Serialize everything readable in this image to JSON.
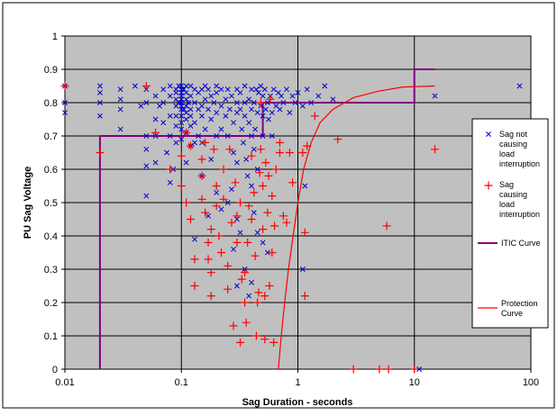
{
  "chart_data": {
    "type": "scatter",
    "xlabel": "Sag Duration - seconds",
    "ylabel": "PU Sag Voltage",
    "x_scale": "log",
    "xlim": [
      0.01,
      100
    ],
    "ylim": [
      0,
      1
    ],
    "x_ticks": [
      "0.01",
      "0.1",
      "1",
      "10",
      "100"
    ],
    "y_ticks": [
      "0",
      "0.1",
      "0.2",
      "0.3",
      "0.4",
      "0.5",
      "0.6",
      "0.7",
      "0.8",
      "0.9",
      "1"
    ],
    "grid": true,
    "legend_position": "right",
    "colors": {
      "plot_bg": "#c0c0c0",
      "not_causing": "#0000cc",
      "causing": "#ff0000",
      "itic": "#800080",
      "protection": "#ff0000"
    },
    "series": [
      {
        "name": "Sag not causing load interruption",
        "legend_lines": [
          "Sag not",
          "causing",
          "load",
          "interruption"
        ],
        "marker": "x",
        "points": [
          [
            0.01,
            0.85
          ],
          [
            0.01,
            0.8
          ],
          [
            0.01,
            0.77
          ],
          [
            0.02,
            0.85
          ],
          [
            0.02,
            0.83
          ],
          [
            0.02,
            0.8
          ],
          [
            0.02,
            0.76
          ],
          [
            0.03,
            0.84
          ],
          [
            0.03,
            0.81
          ],
          [
            0.03,
            0.78
          ],
          [
            0.03,
            0.72
          ],
          [
            0.04,
            0.85
          ],
          [
            0.045,
            0.79
          ],
          [
            0.05,
            0.84
          ],
          [
            0.05,
            0.8
          ],
          [
            0.05,
            0.7
          ],
          [
            0.05,
            0.66
          ],
          [
            0.05,
            0.61
          ],
          [
            0.05,
            0.52
          ],
          [
            0.06,
            0.82
          ],
          [
            0.06,
            0.75
          ],
          [
            0.06,
            0.7
          ],
          [
            0.06,
            0.62
          ],
          [
            0.065,
            0.79
          ],
          [
            0.07,
            0.84
          ],
          [
            0.07,
            0.8
          ],
          [
            0.07,
            0.74
          ],
          [
            0.075,
            0.65
          ],
          [
            0.08,
            0.85
          ],
          [
            0.08,
            0.82
          ],
          [
            0.08,
            0.76
          ],
          [
            0.08,
            0.7
          ],
          [
            0.08,
            0.56
          ],
          [
            0.085,
            0.6
          ],
          [
            0.09,
            0.84
          ],
          [
            0.09,
            0.83
          ],
          [
            0.09,
            0.81
          ],
          [
            0.09,
            0.79
          ],
          [
            0.09,
            0.76
          ],
          [
            0.09,
            0.73
          ],
          [
            0.09,
            0.68
          ],
          [
            0.095,
            0.85
          ],
          [
            0.095,
            0.8
          ],
          [
            0.1,
            0.85
          ],
          [
            0.1,
            0.84
          ],
          [
            0.1,
            0.83
          ],
          [
            0.1,
            0.82
          ],
          [
            0.1,
            0.81
          ],
          [
            0.1,
            0.8
          ],
          [
            0.1,
            0.79
          ],
          [
            0.1,
            0.78
          ],
          [
            0.1,
            0.76
          ],
          [
            0.1,
            0.74
          ],
          [
            0.1,
            0.72
          ],
          [
            0.1,
            0.69
          ],
          [
            0.105,
            0.84
          ],
          [
            0.105,
            0.78
          ],
          [
            0.11,
            0.85
          ],
          [
            0.11,
            0.83
          ],
          [
            0.11,
            0.81
          ],
          [
            0.11,
            0.79
          ],
          [
            0.11,
            0.77
          ],
          [
            0.11,
            0.75
          ],
          [
            0.11,
            0.71
          ],
          [
            0.11,
            0.62
          ],
          [
            0.115,
            0.8
          ],
          [
            0.12,
            0.85
          ],
          [
            0.12,
            0.82
          ],
          [
            0.12,
            0.78
          ],
          [
            0.12,
            0.76
          ],
          [
            0.12,
            0.73
          ],
          [
            0.12,
            0.67
          ],
          [
            0.13,
            0.84
          ],
          [
            0.13,
            0.8
          ],
          [
            0.13,
            0.74
          ],
          [
            0.13,
            0.39
          ],
          [
            0.14,
            0.83
          ],
          [
            0.14,
            0.78
          ],
          [
            0.14,
            0.7
          ],
          [
            0.15,
            0.84
          ],
          [
            0.15,
            0.79
          ],
          [
            0.15,
            0.76
          ],
          [
            0.15,
            0.68
          ],
          [
            0.16,
            0.85
          ],
          [
            0.16,
            0.81
          ],
          [
            0.16,
            0.72
          ],
          [
            0.17,
            0.84
          ],
          [
            0.17,
            0.78
          ],
          [
            0.18,
            0.82
          ],
          [
            0.18,
            0.75
          ],
          [
            0.19,
            0.8
          ],
          [
            0.2,
            0.85
          ],
          [
            0.2,
            0.83
          ],
          [
            0.2,
            0.77
          ],
          [
            0.2,
            0.7
          ],
          [
            0.22,
            0.84
          ],
          [
            0.22,
            0.79
          ],
          [
            0.22,
            0.72
          ],
          [
            0.24,
            0.81
          ],
          [
            0.24,
            0.76
          ],
          [
            0.25,
            0.84
          ],
          [
            0.25,
            0.7
          ],
          [
            0.26,
            0.78
          ],
          [
            0.27,
            0.82
          ],
          [
            0.28,
            0.74
          ],
          [
            0.28,
            0.65
          ],
          [
            0.3,
            0.84
          ],
          [
            0.3,
            0.8
          ],
          [
            0.3,
            0.77
          ],
          [
            0.3,
            0.62
          ],
          [
            0.32,
            0.83
          ],
          [
            0.32,
            0.78
          ],
          [
            0.33,
            0.72
          ],
          [
            0.34,
            0.68
          ],
          [
            0.35,
            0.85
          ],
          [
            0.35,
            0.8
          ],
          [
            0.35,
            0.76
          ],
          [
            0.36,
            0.63
          ],
          [
            0.37,
            0.58
          ],
          [
            0.38,
            0.81
          ],
          [
            0.38,
            0.74
          ],
          [
            0.4,
            0.84
          ],
          [
            0.4,
            0.78
          ],
          [
            0.4,
            0.7
          ],
          [
            0.4,
            0.55
          ],
          [
            0.42,
            0.8
          ],
          [
            0.42,
            0.66
          ],
          [
            0.43,
            0.72
          ],
          [
            0.44,
            0.84
          ],
          [
            0.45,
            0.77
          ],
          [
            0.45,
            0.6
          ],
          [
            0.46,
            0.83
          ],
          [
            0.48,
            0.85
          ],
          [
            0.48,
            0.79
          ],
          [
            0.5,
            0.76
          ],
          [
            0.5,
            0.82
          ],
          [
            0.5,
            0.7
          ],
          [
            0.52,
            0.84
          ],
          [
            0.53,
            0.78
          ],
          [
            0.55,
            0.8
          ],
          [
            0.56,
            0.75
          ],
          [
            0.58,
            0.82
          ],
          [
            0.6,
            0.77
          ],
          [
            0.6,
            0.7
          ],
          [
            0.62,
            0.84
          ],
          [
            0.65,
            0.79
          ],
          [
            0.68,
            0.83
          ],
          [
            0.7,
            0.78
          ],
          [
            0.72,
            0.82
          ],
          [
            0.75,
            0.8
          ],
          [
            0.8,
            0.84
          ],
          [
            0.85,
            0.77
          ],
          [
            0.9,
            0.82
          ],
          [
            0.95,
            0.8
          ],
          [
            1.0,
            0.83
          ],
          [
            1.1,
            0.79
          ],
          [
            1.2,
            0.84
          ],
          [
            1.3,
            0.8
          ],
          [
            1.5,
            0.82
          ],
          [
            1.7,
            0.85
          ],
          [
            2.0,
            0.81
          ],
          [
            1.15,
            0.55
          ],
          [
            1.1,
            0.3
          ],
          [
            0.25,
            0.5
          ],
          [
            0.3,
            0.45
          ],
          [
            0.28,
            0.36
          ],
          [
            0.3,
            0.25
          ],
          [
            0.35,
            0.3
          ],
          [
            0.4,
            0.26
          ],
          [
            0.38,
            0.22
          ],
          [
            0.45,
            0.41
          ],
          [
            0.5,
            0.38
          ],
          [
            0.55,
            0.35
          ],
          [
            0.42,
            0.47
          ],
          [
            0.18,
            0.63
          ],
          [
            0.2,
            0.53
          ],
          [
            0.22,
            0.48
          ],
          [
            0.15,
            0.58
          ],
          [
            0.17,
            0.46
          ],
          [
            0.13,
            0.68
          ],
          [
            0.27,
            0.54
          ],
          [
            0.32,
            0.41
          ],
          [
            15.0,
            0.82
          ],
          [
            80.0,
            0.85
          ],
          [
            11.0,
            0.0
          ]
        ]
      },
      {
        "name": "Sag causing load interruption",
        "legend_lines": [
          "Sag",
          "causing",
          "load",
          "interruption"
        ],
        "marker": "+",
        "points": [
          [
            0.01,
            0.85
          ],
          [
            0.02,
            0.65
          ],
          [
            0.05,
            0.85
          ],
          [
            0.06,
            0.71
          ],
          [
            0.08,
            0.6
          ],
          [
            0.1,
            0.55
          ],
          [
            0.1,
            0.64
          ],
          [
            0.11,
            0.71
          ],
          [
            0.11,
            0.5
          ],
          [
            0.12,
            0.45
          ],
          [
            0.12,
            0.67
          ],
          [
            0.13,
            0.33
          ],
          [
            0.13,
            0.25
          ],
          [
            0.15,
            0.63
          ],
          [
            0.15,
            0.58
          ],
          [
            0.15,
            0.51
          ],
          [
            0.16,
            0.68
          ],
          [
            0.16,
            0.47
          ],
          [
            0.17,
            0.38
          ],
          [
            0.17,
            0.33
          ],
          [
            0.18,
            0.42
          ],
          [
            0.18,
            0.29
          ],
          [
            0.18,
            0.22
          ],
          [
            0.19,
            0.66
          ],
          [
            0.2,
            0.55
          ],
          [
            0.2,
            0.49
          ],
          [
            0.21,
            0.4
          ],
          [
            0.22,
            0.35
          ],
          [
            0.23,
            0.6
          ],
          [
            0.23,
            0.51
          ],
          [
            0.25,
            0.31
          ],
          [
            0.25,
            0.24
          ],
          [
            0.26,
            0.66
          ],
          [
            0.27,
            0.44
          ],
          [
            0.28,
            0.13
          ],
          [
            0.29,
            0.56
          ],
          [
            0.3,
            0.46
          ],
          [
            0.3,
            0.38
          ],
          [
            0.32,
            0.5
          ],
          [
            0.32,
            0.08
          ],
          [
            0.33,
            0.27
          ],
          [
            0.35,
            0.29
          ],
          [
            0.35,
            0.2
          ],
          [
            0.36,
            0.14
          ],
          [
            0.37,
            0.38
          ],
          [
            0.38,
            0.49
          ],
          [
            0.4,
            0.64
          ],
          [
            0.4,
            0.45
          ],
          [
            0.42,
            0.53
          ],
          [
            0.43,
            0.34
          ],
          [
            0.44,
            0.1
          ],
          [
            0.45,
            0.2
          ],
          [
            0.46,
            0.23
          ],
          [
            0.47,
            0.59
          ],
          [
            0.48,
            0.8
          ],
          [
            0.48,
            0.66
          ],
          [
            0.5,
            0.55
          ],
          [
            0.5,
            0.42
          ],
          [
            0.52,
            0.22
          ],
          [
            0.52,
            0.09
          ],
          [
            0.53,
            0.62
          ],
          [
            0.55,
            0.47
          ],
          [
            0.56,
            0.58
          ],
          [
            0.57,
            0.25
          ],
          [
            0.58,
            0.81
          ],
          [
            0.6,
            0.52
          ],
          [
            0.6,
            0.35
          ],
          [
            0.62,
            0.08
          ],
          [
            0.63,
            0.43
          ],
          [
            0.65,
            0.6
          ],
          [
            0.7,
            0.68
          ],
          [
            0.7,
            0.65
          ],
          [
            0.75,
            0.46
          ],
          [
            0.8,
            0.44
          ],
          [
            0.85,
            0.65
          ],
          [
            0.9,
            0.56
          ],
          [
            1.1,
            0.65
          ],
          [
            1.15,
            0.41
          ],
          [
            1.15,
            0.22
          ],
          [
            1.2,
            0.67
          ],
          [
            1.4,
            0.76
          ],
          [
            2.2,
            0.69
          ],
          [
            3.0,
            0.0
          ],
          [
            5.0,
            0.0
          ],
          [
            5.8,
            0.43
          ],
          [
            6.0,
            0.0
          ],
          [
            10.0,
            0.0
          ],
          [
            15.0,
            0.66
          ]
        ]
      },
      {
        "name": "ITIC Curve",
        "legend_lines": [
          "ITIC Curve"
        ],
        "marker": "line",
        "points": [
          [
            0.02,
            0.0
          ],
          [
            0.02,
            0.7
          ],
          [
            0.5,
            0.7
          ],
          [
            0.5,
            0.8
          ],
          [
            10,
            0.8
          ],
          [
            10,
            0.9
          ],
          [
            15,
            0.9
          ]
        ]
      },
      {
        "name": "Protection Curve",
        "legend_lines": [
          "Protection",
          "Curve"
        ],
        "marker": "line",
        "points": [
          [
            0.68,
            0.0
          ],
          [
            0.72,
            0.1
          ],
          [
            0.77,
            0.2
          ],
          [
            0.83,
            0.3
          ],
          [
            0.91,
            0.4
          ],
          [
            1.0,
            0.5
          ],
          [
            1.12,
            0.6
          ],
          [
            1.3,
            0.68
          ],
          [
            1.55,
            0.74
          ],
          [
            2.0,
            0.78
          ],
          [
            3.0,
            0.815
          ],
          [
            5.0,
            0.835
          ],
          [
            8.0,
            0.847
          ],
          [
            15.0,
            0.85
          ]
        ]
      }
    ]
  }
}
